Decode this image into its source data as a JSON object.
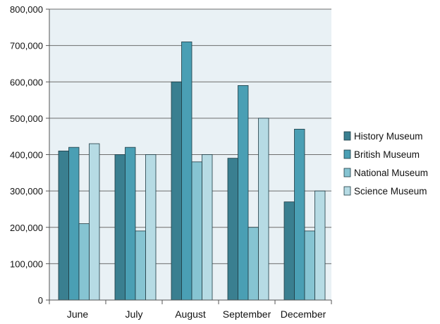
{
  "chart_data": {
    "type": "bar",
    "title": "",
    "xlabel": "",
    "ylabel": "",
    "categories": [
      "June",
      "July",
      "August",
      "September",
      "December"
    ],
    "ylim": [
      0,
      800000
    ],
    "yticks": [
      0,
      100000,
      200000,
      300000,
      400000,
      500000,
      600000,
      700000,
      800000
    ],
    "ytick_labels": [
      "0",
      "100,000",
      "200,000",
      "300,000",
      "400,000",
      "500,000",
      "600,000",
      "700,000",
      "800,000"
    ],
    "grid": true,
    "legend_position": "right",
    "series": [
      {
        "name": "History Museum",
        "color": "#3a7f90",
        "values": [
          410000,
          400000,
          600000,
          390000,
          270000
        ]
      },
      {
        "name": "British Museum",
        "color": "#4a9fb4",
        "values": [
          420000,
          420000,
          710000,
          590000,
          470000
        ]
      },
      {
        "name": "National Museum",
        "color": "#86c4d2",
        "values": [
          210000,
          190000,
          380000,
          200000,
          190000
        ]
      },
      {
        "name": "Science Museum",
        "color": "#b6dbe4",
        "values": [
          430000,
          400000,
          400000,
          500000,
          300000
        ]
      }
    ],
    "plot_background": "#e9f1f5"
  }
}
